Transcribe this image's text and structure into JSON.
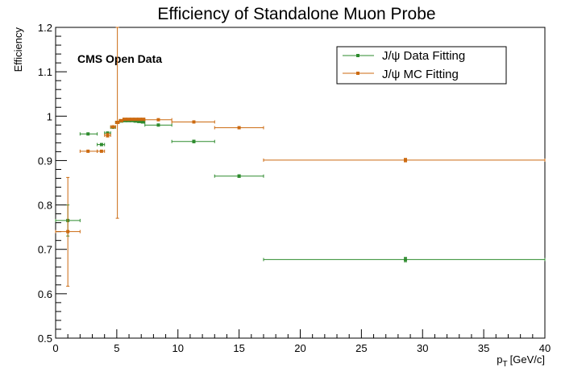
{
  "chart_data": {
    "type": "scatter",
    "title": "Efficiency of Standalone Muon Probe",
    "annotation": "CMS Open Data",
    "xlabel": "p_T [GeV/c]",
    "xlabel_main": "p",
    "xlabel_sub": "T",
    "xlabel_unit": "[GeV/c]",
    "ylabel": "Efficiency",
    "xlim": [
      0,
      40
    ],
    "ylim": [
      0.5,
      1.2
    ],
    "x_ticks": [
      0,
      5,
      10,
      15,
      20,
      25,
      30,
      35,
      40
    ],
    "x_tick_labels": [
      "0",
      "5",
      "10",
      "15",
      "20",
      "25",
      "30",
      "35",
      "40"
    ],
    "y_ticks": [
      0.5,
      0.6,
      0.7,
      0.8,
      0.9,
      1.0,
      1.1,
      1.2
    ],
    "y_tick_labels": [
      "0.5",
      "0.6",
      "0.7",
      "0.8",
      "0.9",
      "1",
      "1.1",
      "1.2"
    ],
    "grid": false,
    "legend_position": "top-right",
    "series": [
      {
        "name": "J/ψ Data Fitting",
        "color": "#2e8b2e",
        "points": [
          {
            "x": 1.0,
            "xlo": 0.0,
            "xhi": 2.0,
            "y": 0.765,
            "ylo": 0.73,
            "yhi": 0.8
          },
          {
            "x": 2.65,
            "xlo": 2.0,
            "xhi": 3.4,
            "y": 0.96,
            "ylo": 0.958,
            "yhi": 0.962
          },
          {
            "x": 3.75,
            "xlo": 3.4,
            "xhi": 4.0,
            "y": 0.936,
            "ylo": 0.934,
            "yhi": 0.938
          },
          {
            "x": 4.25,
            "xlo": 4.0,
            "xhi": 4.5,
            "y": 0.962,
            "ylo": 0.96,
            "yhi": 0.964
          },
          {
            "x": 4.7,
            "xlo": 4.5,
            "xhi": 4.9,
            "y": 0.975,
            "ylo": 0.973,
            "yhi": 0.977
          },
          {
            "x": 5.05,
            "xlo": 4.9,
            "xhi": 5.2,
            "y": 0.986,
            "ylo": 0.984,
            "yhi": 0.988
          },
          {
            "x": 5.35,
            "xlo": 5.2,
            "xhi": 5.5,
            "y": 0.989,
            "ylo": 0.987,
            "yhi": 0.991
          },
          {
            "x": 5.65,
            "xlo": 5.5,
            "xhi": 5.8,
            "y": 0.99,
            "ylo": 0.988,
            "yhi": 0.992
          },
          {
            "x": 5.95,
            "xlo": 5.8,
            "xhi": 6.1,
            "y": 0.99,
            "ylo": 0.988,
            "yhi": 0.992
          },
          {
            "x": 6.25,
            "xlo": 6.1,
            "xhi": 6.4,
            "y": 0.99,
            "ylo": 0.988,
            "yhi": 0.992
          },
          {
            "x": 6.55,
            "xlo": 6.4,
            "xhi": 6.7,
            "y": 0.989,
            "ylo": 0.987,
            "yhi": 0.991
          },
          {
            "x": 6.85,
            "xlo": 6.7,
            "xhi": 7.0,
            "y": 0.988,
            "ylo": 0.986,
            "yhi": 0.99
          },
          {
            "x": 7.15,
            "xlo": 7.0,
            "xhi": 7.3,
            "y": 0.987,
            "ylo": 0.985,
            "yhi": 0.989
          },
          {
            "x": 8.4,
            "xlo": 7.3,
            "xhi": 9.5,
            "y": 0.98,
            "ylo": 0.978,
            "yhi": 0.982
          },
          {
            "x": 11.3,
            "xlo": 9.5,
            "xhi": 13.0,
            "y": 0.943,
            "ylo": 0.94,
            "yhi": 0.946
          },
          {
            "x": 15.0,
            "xlo": 13.0,
            "xhi": 17.0,
            "y": 0.865,
            "ylo": 0.862,
            "yhi": 0.868
          },
          {
            "x": 28.6,
            "xlo": 17.0,
            "xhi": 40.0,
            "y": 0.677,
            "ylo": 0.672,
            "yhi": 0.682
          }
        ]
      },
      {
        "name": "J/ψ MC Fitting",
        "color": "#cc6a10",
        "points": [
          {
            "x": 1.0,
            "xlo": 0.0,
            "xhi": 2.0,
            "y": 0.74,
            "ylo": 0.617,
            "yhi": 0.862
          },
          {
            "x": 2.65,
            "xlo": 2.0,
            "xhi": 3.4,
            "y": 0.921,
            "ylo": 0.919,
            "yhi": 0.923
          },
          {
            "x": 3.75,
            "xlo": 3.4,
            "xhi": 4.0,
            "y": 0.921,
            "ylo": 0.919,
            "yhi": 0.923
          },
          {
            "x": 4.25,
            "xlo": 4.0,
            "xhi": 4.5,
            "y": 0.957,
            "ylo": 0.953,
            "yhi": 0.961
          },
          {
            "x": 4.7,
            "xlo": 4.5,
            "xhi": 4.9,
            "y": 0.976,
            "ylo": 0.974,
            "yhi": 0.978
          },
          {
            "x": 5.05,
            "xlo": 4.9,
            "xhi": 5.2,
            "y": 0.986,
            "ylo": 0.77,
            "yhi": 1.2
          },
          {
            "x": 5.35,
            "xlo": 5.2,
            "xhi": 5.5,
            "y": 0.99,
            "ylo": 0.988,
            "yhi": 0.992
          },
          {
            "x": 5.65,
            "xlo": 5.5,
            "xhi": 5.8,
            "y": 0.993,
            "ylo": 0.991,
            "yhi": 0.995
          },
          {
            "x": 5.95,
            "xlo": 5.8,
            "xhi": 6.1,
            "y": 0.993,
            "ylo": 0.991,
            "yhi": 0.995
          },
          {
            "x": 6.25,
            "xlo": 6.1,
            "xhi": 6.4,
            "y": 0.993,
            "ylo": 0.991,
            "yhi": 0.995
          },
          {
            "x": 6.55,
            "xlo": 6.4,
            "xhi": 6.7,
            "y": 0.993,
            "ylo": 0.991,
            "yhi": 0.995
          },
          {
            "x": 6.85,
            "xlo": 6.7,
            "xhi": 7.0,
            "y": 0.993,
            "ylo": 0.991,
            "yhi": 0.995
          },
          {
            "x": 7.15,
            "xlo": 7.0,
            "xhi": 7.3,
            "y": 0.993,
            "ylo": 0.991,
            "yhi": 0.995
          },
          {
            "x": 8.4,
            "xlo": 7.3,
            "xhi": 9.5,
            "y": 0.992,
            "ylo": 0.99,
            "yhi": 0.994
          },
          {
            "x": 11.3,
            "xlo": 9.5,
            "xhi": 13.0,
            "y": 0.987,
            "ylo": 0.985,
            "yhi": 0.989
          },
          {
            "x": 15.0,
            "xlo": 13.0,
            "xhi": 17.0,
            "y": 0.974,
            "ylo": 0.972,
            "yhi": 0.976
          },
          {
            "x": 28.6,
            "xlo": 17.0,
            "xhi": 40.0,
            "y": 0.901,
            "ylo": 0.897,
            "yhi": 0.905
          }
        ]
      }
    ]
  }
}
